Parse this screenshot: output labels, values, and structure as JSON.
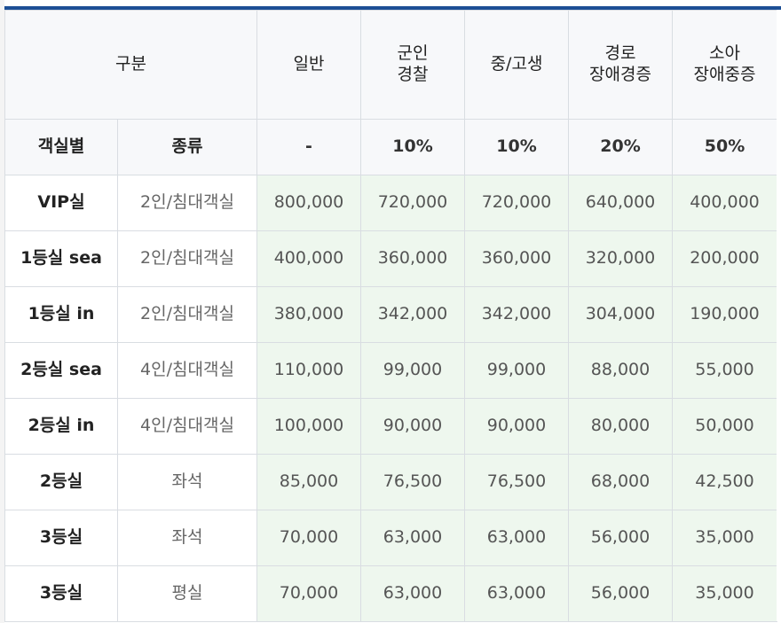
{
  "header": {
    "category": "구분",
    "fare_columns": [
      {
        "line1": "일반",
        "line2": ""
      },
      {
        "line1": "군인",
        "line2": "경찰"
      },
      {
        "line1": "중/고생",
        "line2": ""
      },
      {
        "line1": "경로",
        "line2": "장애경증"
      },
      {
        "line1": "소아",
        "line2": "장애중증"
      }
    ]
  },
  "subheader": {
    "room_type": "객실별",
    "kind": "종류",
    "discounts": [
      "-",
      "10%",
      "10%",
      "20%",
      "50%"
    ]
  },
  "rows": [
    {
      "room": "VIP실",
      "kind": "2인/침대객실",
      "prices": [
        "800,000",
        "720,000",
        "720,000",
        "640,000",
        "400,000"
      ]
    },
    {
      "room": "1등실 sea",
      "kind": "2인/침대객실",
      "prices": [
        "400,000",
        "360,000",
        "360,000",
        "320,000",
        "200,000"
      ]
    },
    {
      "room": "1등실 in",
      "kind": "2인/침대객실",
      "prices": [
        "380,000",
        "342,000",
        "342,000",
        "304,000",
        "190,000"
      ]
    },
    {
      "room": "2등실 sea",
      "kind": "4인/침대객실",
      "prices": [
        "110,000",
        "99,000",
        "99,000",
        "88,000",
        "55,000"
      ]
    },
    {
      "room": "2등실 in",
      "kind": "4인/침대객실",
      "prices": [
        "100,000",
        "90,000",
        "90,000",
        "80,000",
        "50,000"
      ]
    },
    {
      "room": "2등실",
      "kind": "좌석",
      "prices": [
        "85,000",
        "76,500",
        "76,500",
        "68,000",
        "42,500"
      ]
    },
    {
      "room": "3등실",
      "kind": "좌석",
      "prices": [
        "70,000",
        "63,000",
        "63,000",
        "56,000",
        "35,000"
      ]
    },
    {
      "room": "3등실",
      "kind": "평실",
      "prices": [
        "70,000",
        "63,000",
        "63,000",
        "56,000",
        "35,000"
      ]
    }
  ],
  "colors": {
    "header_bar": "#1d4f95",
    "header_bg": "#f7f8fa",
    "price_bg": "#eef7ee",
    "border": "#d9dde2"
  }
}
